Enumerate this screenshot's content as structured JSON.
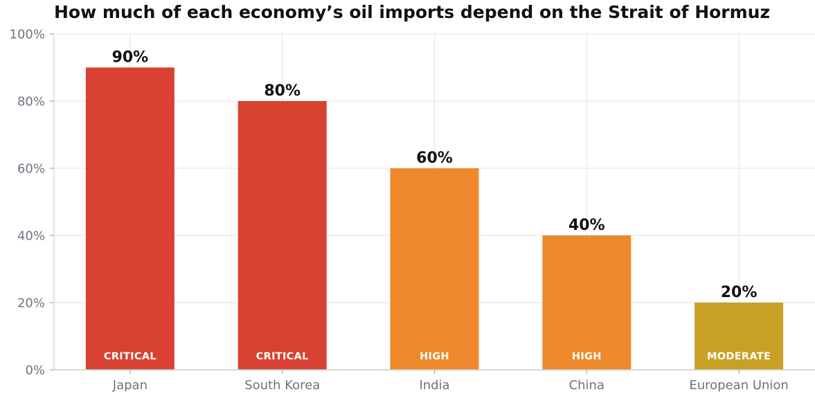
{
  "chart_data": {
    "type": "bar",
    "title": "How much of each economy’s oil imports depend on the Strait of Hormuz",
    "xlabel": "",
    "ylabel": "",
    "categories": [
      "Japan",
      "South Korea",
      "India",
      "China",
      "European Union"
    ],
    "values": [
      90,
      80,
      60,
      40,
      20
    ],
    "value_labels": [
      "90%",
      "80%",
      "60%",
      "40%",
      "20%"
    ],
    "tiers": [
      "CRITICAL",
      "CRITICAL",
      "HIGH",
      "HIGH",
      "MODERATE"
    ],
    "tier_colors": {
      "CRITICAL": "#d94132",
      "HIGH": "#ef892d",
      "MODERATE": "#c9a026"
    },
    "ylim": [
      0,
      100
    ],
    "yticks": [
      0,
      20,
      40,
      60,
      80,
      100
    ],
    "ytick_labels": [
      "0%",
      "20%",
      "40%",
      "60%",
      "80%",
      "100%"
    ],
    "grid": true
  }
}
